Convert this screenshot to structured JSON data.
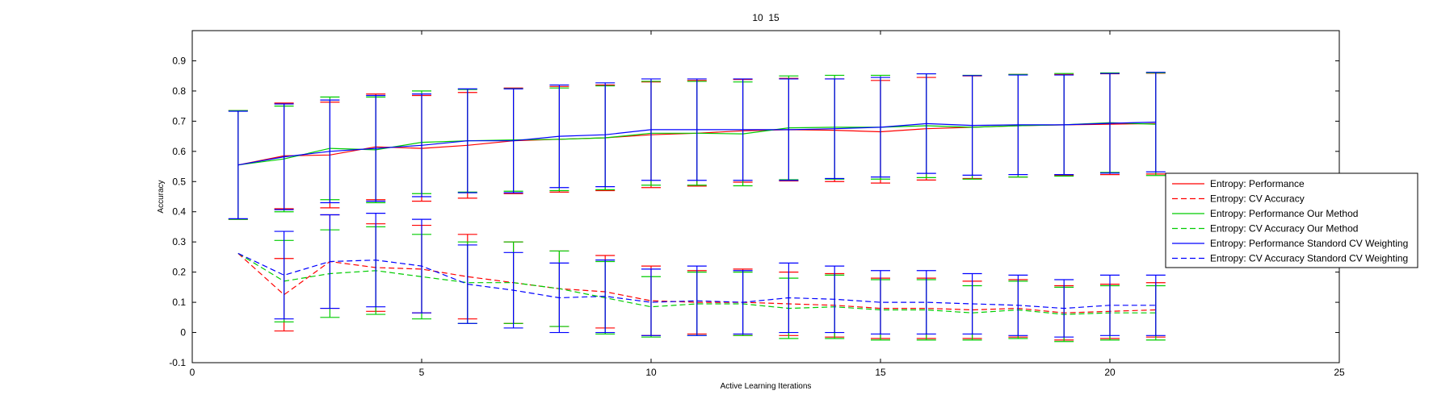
{
  "chart_data": {
    "type": "line",
    "title": "10  15",
    "xlabel": "Active Learning Iterations",
    "ylabel": "Accuracy",
    "xlim": [
      0,
      25
    ],
    "ylim": [
      -0.1,
      1.0
    ],
    "xticks": [
      0,
      5,
      10,
      15,
      20,
      25
    ],
    "yticks": [
      -0.1,
      0,
      0.1,
      0.2,
      0.3,
      0.4,
      0.5,
      0.6,
      0.7,
      0.8,
      0.9
    ],
    "grid": false,
    "legend_position": "right",
    "x": [
      1,
      2,
      3,
      4,
      5,
      6,
      7,
      8,
      9,
      10,
      11,
      12,
      13,
      14,
      15,
      16,
      17,
      18,
      19,
      20,
      21
    ],
    "series": [
      {
        "name": "Entropy: Performance",
        "color": "#ff0000",
        "dash": "solid",
        "values": [
          0.555,
          0.585,
          0.588,
          0.615,
          0.61,
          0.62,
          0.635,
          0.64,
          0.645,
          0.655,
          0.66,
          0.668,
          0.672,
          0.67,
          0.665,
          0.675,
          0.68,
          0.685,
          0.688,
          0.69,
          0.692
        ],
        "errors": [
          0.18,
          0.175,
          0.175,
          0.175,
          0.175,
          0.175,
          0.175,
          0.175,
          0.175,
          0.175,
          0.175,
          0.17,
          0.17,
          0.17,
          0.17,
          0.17,
          0.17,
          0.17,
          0.167,
          0.167,
          0.167
        ]
      },
      {
        "name": "Entropy: CV Accuracy",
        "color": "#ff0000",
        "dash": "dashed",
        "values": [
          0.262,
          0.125,
          0.235,
          0.215,
          0.21,
          0.185,
          0.165,
          0.145,
          0.135,
          0.105,
          0.1,
          0.1,
          0.095,
          0.09,
          0.08,
          0.08,
          0.075,
          0.08,
          0.065,
          0.07,
          0.075
        ],
        "errors": [
          0.0,
          0.12,
          0.155,
          0.145,
          0.145,
          0.14,
          0.135,
          0.125,
          0.12,
          0.115,
          0.105,
          0.11,
          0.105,
          0.105,
          0.1,
          0.1,
          0.095,
          0.095,
          0.09,
          0.09,
          0.09
        ]
      },
      {
        "name": "Entropy: Performance Our Method",
        "color": "#00cc00",
        "dash": "solid",
        "values": [
          0.555,
          0.575,
          0.61,
          0.605,
          0.63,
          0.635,
          0.638,
          0.64,
          0.645,
          0.66,
          0.66,
          0.658,
          0.678,
          0.68,
          0.68,
          0.685,
          0.68,
          0.685,
          0.688,
          0.695,
          0.69
        ],
        "errors": [
          0.18,
          0.175,
          0.17,
          0.175,
          0.17,
          0.17,
          0.17,
          0.17,
          0.172,
          0.172,
          0.172,
          0.172,
          0.172,
          0.172,
          0.172,
          0.172,
          0.172,
          0.17,
          0.17,
          0.165,
          0.17
        ]
      },
      {
        "name": "Entropy: CV Accuracy Our Method",
        "color": "#00cc00",
        "dash": "dashed",
        "values": [
          0.262,
          0.17,
          0.195,
          0.205,
          0.185,
          0.165,
          0.165,
          0.145,
          0.115,
          0.085,
          0.095,
          0.095,
          0.08,
          0.085,
          0.075,
          0.075,
          0.065,
          0.075,
          0.06,
          0.065,
          0.065
        ],
        "errors": [
          0.0,
          0.135,
          0.145,
          0.145,
          0.14,
          0.135,
          0.135,
          0.125,
          0.12,
          0.1,
          0.105,
          0.105,
          0.1,
          0.105,
          0.1,
          0.1,
          0.09,
          0.095,
          0.09,
          0.09,
          0.09
        ]
      },
      {
        "name": "Entropy: Performance Standord CV Weighting",
        "color": "#0000ff",
        "dash": "solid",
        "values": [
          0.555,
          0.582,
          0.6,
          0.61,
          0.62,
          0.635,
          0.635,
          0.65,
          0.655,
          0.672,
          0.672,
          0.672,
          0.672,
          0.675,
          0.68,
          0.692,
          0.686,
          0.688,
          0.688,
          0.693,
          0.697
        ],
        "errors": [
          0.178,
          0.175,
          0.17,
          0.175,
          0.17,
          0.172,
          0.172,
          0.17,
          0.172,
          0.168,
          0.168,
          0.168,
          0.168,
          0.165,
          0.165,
          0.165,
          0.165,
          0.165,
          0.165,
          0.165,
          0.165
        ]
      },
      {
        "name": "Entropy: CV Accuracy Standord CV Weighting",
        "color": "#0000ff",
        "dash": "dashed",
        "values": [
          0.262,
          0.19,
          0.235,
          0.24,
          0.22,
          0.16,
          0.14,
          0.115,
          0.12,
          0.1,
          0.105,
          0.1,
          0.115,
          0.11,
          0.1,
          0.1,
          0.095,
          0.09,
          0.08,
          0.09,
          0.09
        ],
        "errors": [
          0.0,
          0.145,
          0.155,
          0.155,
          0.155,
          0.13,
          0.125,
          0.115,
          0.12,
          0.11,
          0.115,
          0.105,
          0.115,
          0.11,
          0.105,
          0.105,
          0.1,
          0.1,
          0.095,
          0.1,
          0.1
        ]
      }
    ]
  }
}
